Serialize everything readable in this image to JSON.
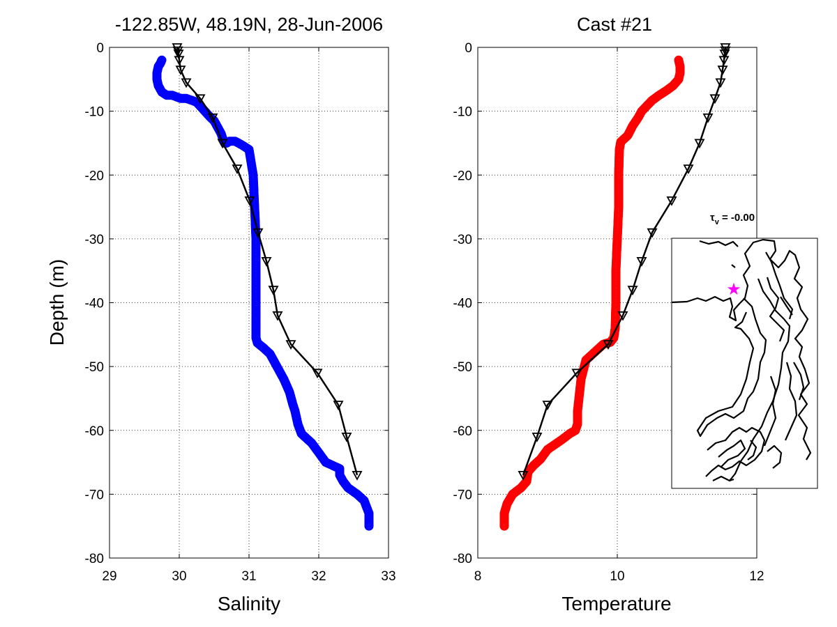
{
  "chart_data": [
    {
      "type": "line",
      "title": "-122.85W, 48.19N, 28-Jun-2006",
      "xlabel": "Salinity",
      "ylabel": "Depth (m)",
      "xlim": [
        29,
        33
      ],
      "ylim": [
        -80,
        0
      ],
      "xticks": [
        "29",
        "30",
        "31",
        "32",
        "33"
      ],
      "yticks": [
        "0",
        "-10",
        "-20",
        "-30",
        "-40",
        "-50",
        "-60",
        "-70",
        "-80"
      ],
      "grid": true,
      "series": [
        {
          "marker": "circle",
          "color": "#0000ff",
          "x": [
            29.75,
            29.73,
            29.7,
            29.68,
            29.68,
            29.7,
            29.75,
            29.82,
            29.9,
            30.02,
            30.1,
            30.18,
            30.25,
            30.3,
            30.35,
            30.4,
            30.45,
            30.5,
            30.55,
            30.6,
            30.63,
            30.65,
            30.68,
            30.72,
            30.8,
            30.9,
            31.0,
            31.06,
            31.08,
            31.1,
            31.1,
            31.1,
            31.1,
            31.1,
            31.1,
            31.1,
            31.12,
            31.2,
            31.3,
            31.4,
            31.5,
            31.58,
            31.63,
            31.66,
            31.7,
            31.75,
            31.9,
            32.0,
            32.1,
            32.2,
            32.3,
            32.3,
            32.35,
            32.42,
            32.55,
            32.65,
            32.72,
            32.72
          ],
          "y": [
            -2,
            -2.5,
            -3,
            -4,
            -5,
            -6,
            -7,
            -7.5,
            -7.5,
            -8,
            -8,
            -8.3,
            -8.6,
            -9.2,
            -9.8,
            -10.4,
            -11,
            -11.5,
            -12.5,
            -13.5,
            -14.5,
            -15,
            -15,
            -14.7,
            -14.7,
            -15.3,
            -16,
            -20,
            -25,
            -30,
            -35,
            -40,
            -43,
            -45.5,
            -45.3,
            -45.5,
            -46.3,
            -47,
            -48,
            -50,
            -52,
            -54,
            -56,
            -57,
            -59,
            -60.5,
            -62,
            -63.5,
            -65,
            -65.5,
            -66,
            -67,
            -68,
            -69,
            -70,
            -71,
            -73,
            -75
          ]
        },
        {
          "marker": "triangle-down",
          "color": "#000000",
          "x": [
            29.97,
            29.98,
            29.99,
            30.0,
            30.02,
            30.1,
            30.3,
            30.48,
            30.62,
            30.83,
            31.01,
            31.13,
            31.25,
            31.35,
            31.41,
            31.6,
            31.98,
            32.28,
            32.4,
            32.55
          ],
          "y": [
            0,
            -0.5,
            -1,
            -2,
            -3.5,
            -5.5,
            -8,
            -11,
            -15,
            -19,
            -24,
            -29,
            -33.5,
            -38,
            -42,
            -46.5,
            -51,
            -56,
            -61,
            -67
          ]
        }
      ]
    },
    {
      "type": "line",
      "title": "Cast #21",
      "xlabel": "Temperature",
      "ylabel": "",
      "xlim": [
        8,
        12
      ],
      "ylim": [
        -80,
        0
      ],
      "xticks": [
        "8",
        "10",
        "12"
      ],
      "yticks": [
        "0",
        "-10",
        "-20",
        "-30",
        "-40",
        "-50",
        "-60",
        "-70",
        "-80"
      ],
      "grid": true,
      "series": [
        {
          "marker": "circle",
          "color": "#ff0000",
          "x": [
            10.88,
            10.9,
            10.9,
            10.88,
            10.8,
            10.7,
            10.6,
            10.5,
            10.42,
            10.35,
            10.3,
            10.22,
            10.15,
            10.05,
            10.03,
            10.02,
            10.02,
            10.0,
            9.98,
            9.98,
            9.97,
            9.95,
            9.9,
            9.8,
            9.7,
            9.55,
            9.48,
            9.45,
            9.43,
            9.43,
            9.4,
            9.32,
            9.2,
            9.0,
            8.9,
            8.8,
            8.72,
            8.7,
            8.62,
            8.5,
            8.42,
            8.38,
            8.38
          ],
          "y": [
            -2,
            -3,
            -4,
            -5,
            -6,
            -6.8,
            -7.5,
            -8.3,
            -9.2,
            -10,
            -11,
            -12.3,
            -13.8,
            -14.8,
            -16,
            -20,
            -25,
            -30,
            -35,
            -40,
            -44,
            -45.5,
            -46.2,
            -46.5,
            -47.5,
            -49,
            -52,
            -55,
            -57,
            -59,
            -60,
            -60.5,
            -61.5,
            -63,
            -64.5,
            -65.5,
            -66.5,
            -68,
            -69,
            -70,
            -71.5,
            -73,
            -75
          ]
        },
        {
          "marker": "triangle-down",
          "color": "#000000",
          "x": [
            11.55,
            11.55,
            11.54,
            11.53,
            11.51,
            11.48,
            11.4,
            11.3,
            11.18,
            11.02,
            10.78,
            10.5,
            10.35,
            10.22,
            10.08,
            9.87,
            9.42,
            9.0,
            8.85,
            8.65
          ],
          "y": [
            0,
            -0.5,
            -1,
            -2,
            -3.5,
            -5.5,
            -8,
            -11,
            -15,
            -19,
            -24,
            -29,
            -33.5,
            -38,
            -42,
            -46.5,
            -51,
            -56,
            -61,
            -67
          ]
        }
      ]
    }
  ],
  "inset": {
    "label": "τv = -0.00",
    "star_color": "#ff00ff"
  }
}
